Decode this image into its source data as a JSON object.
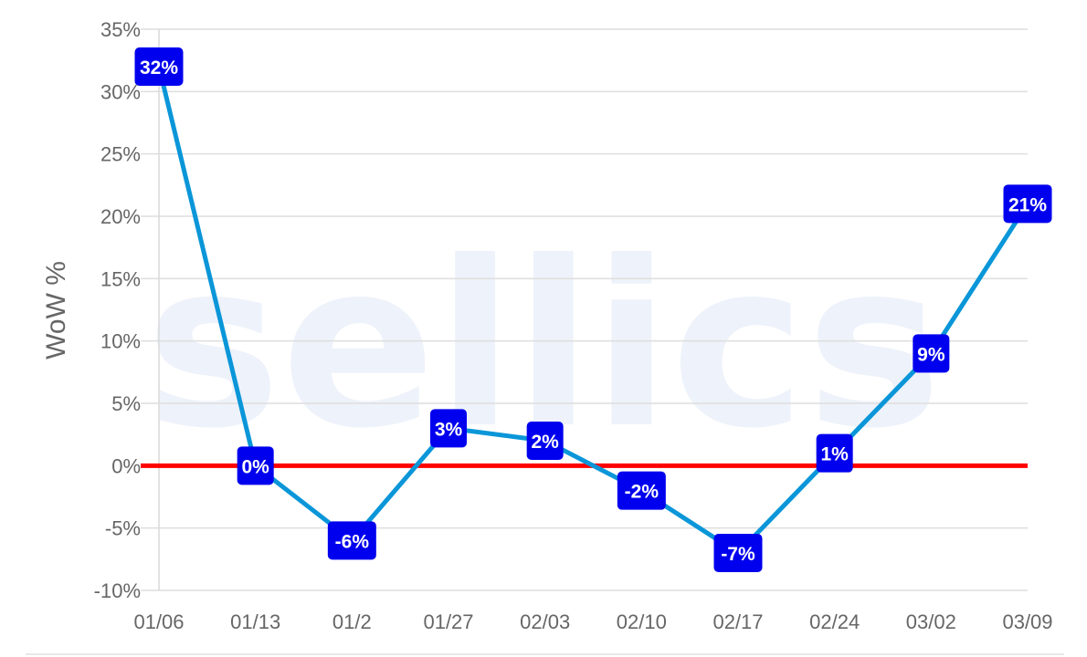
{
  "chart_data": {
    "type": "line",
    "title": "",
    "xlabel": "",
    "ylabel": "WoW %",
    "categories": [
      "01/06",
      "01/13",
      "01/2",
      "01/27",
      "02/03",
      "02/10",
      "02/17",
      "02/24",
      "03/02",
      "03/09"
    ],
    "series": [
      {
        "values": [
          32,
          0,
          -6,
          3,
          2,
          -2,
          -7,
          1,
          9,
          21
        ],
        "color": "#0a96d8"
      }
    ],
    "data_labels": [
      "32%",
      "0%",
      "-6%",
      "3%",
      "2%",
      "-2%",
      "-7%",
      "1%",
      "9%",
      "21%"
    ],
    "ylim": [
      -10,
      35
    ],
    "y_ticks": [
      35,
      30,
      25,
      20,
      15,
      10,
      5,
      0,
      -5,
      -10
    ],
    "y_tick_labels": [
      "35%",
      "30%",
      "25%",
      "20%",
      "15%",
      "10%",
      "5%",
      "0%",
      "-5%",
      "-10%"
    ],
    "reference_line": {
      "value": 0,
      "color": "#ff0000"
    },
    "label_box_color": "#0000ee",
    "grid": true,
    "legend": "none",
    "watermark": "sellics"
  }
}
